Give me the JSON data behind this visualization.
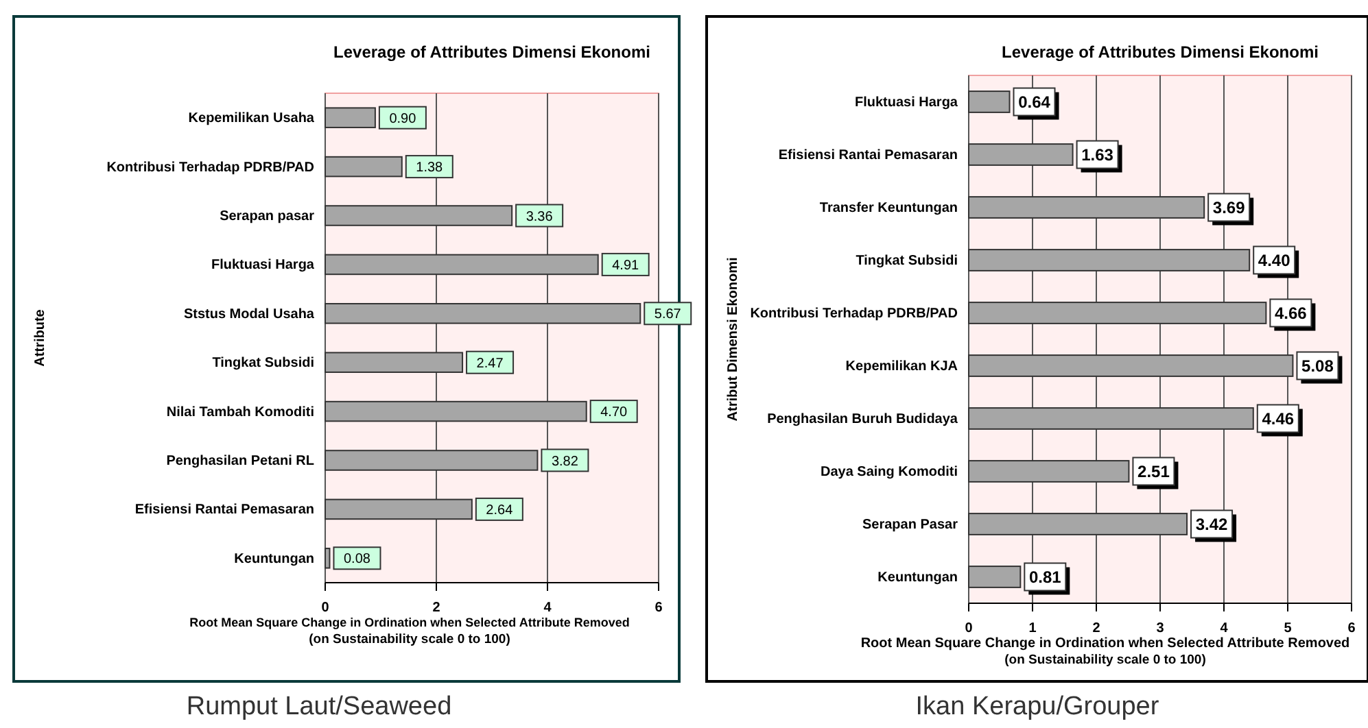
{
  "chart_data": [
    {
      "type": "bar",
      "orientation": "horizontal",
      "title": "Leverage of Attributes Dimensi Ekonomi",
      "ylabel": "Attribute",
      "xlabel": "Root Mean Square Change in Ordination when Selected Attribute Removed\n(on Sustainability scale 0 to 100)",
      "categories": [
        "Kepemilikan Usaha",
        "Kontribusi Terhadap PDRB/PAD",
        "Serapan pasar",
        "Fluktuasi Harga",
        "Ststus Modal Usaha",
        "Tingkat Subsidi",
        "Nilai Tambah Komoditi",
        "Penghasilan Petani RL",
        "Efisiensi Rantai Pemasaran",
        "Keuntungan"
      ],
      "values": [
        0.9,
        1.38,
        3.36,
        4.91,
        5.67,
        2.47,
        4.7,
        3.82,
        2.64,
        0.08
      ],
      "value_labels": [
        "0.90",
        "1.38",
        "3.36",
        "4.91",
        "5.67",
        "2.47",
        "4.70",
        "3.82",
        "2.64",
        "0.08"
      ],
      "color": "#a6a6a6",
      "xlim": [
        0,
        6
      ],
      "xticks": [
        0,
        2,
        4,
        6
      ],
      "grid": "x",
      "annotations": [
        "Rumput Laut/Seaweed"
      ]
    },
    {
      "type": "bar",
      "orientation": "horizontal",
      "title": "Leverage of Attributes Dimensi Ekonomi",
      "ylabel": "Atribut Dimensi Ekonomi",
      "xlabel": "Root Mean Square Change in Ordination when Selected Attribute Removed\n(on Sustainability scale 0 to 100)",
      "categories": [
        "Fluktuasi Harga",
        "Efisiensi Rantai Pemasaran",
        "Transfer  Keuntungan",
        "Tingkat Subsidi",
        "Kontribusi Terhadap PDRB/PAD",
        "Kepemilikan KJA",
        "Penghasilan Buruh Budidaya",
        "Daya Saing Komoditi",
        "Serapan Pasar",
        "Keuntungan"
      ],
      "values": [
        0.64,
        1.63,
        3.69,
        4.4,
        4.66,
        5.08,
        4.46,
        2.51,
        3.42,
        0.81
      ],
      "value_labels": [
        "0.64",
        "1.63",
        "3.69",
        "4.40",
        "4.66",
        "5.08",
        "4.46",
        "2.51",
        "3.42",
        "0.81"
      ],
      "color": "#a6a6a6",
      "xlim": [
        0,
        6
      ],
      "xticks": [
        0,
        1,
        2,
        3,
        4,
        5,
        6
      ],
      "grid": "x",
      "annotations": [
        "Ikan Kerapu/Grouper"
      ]
    }
  ]
}
